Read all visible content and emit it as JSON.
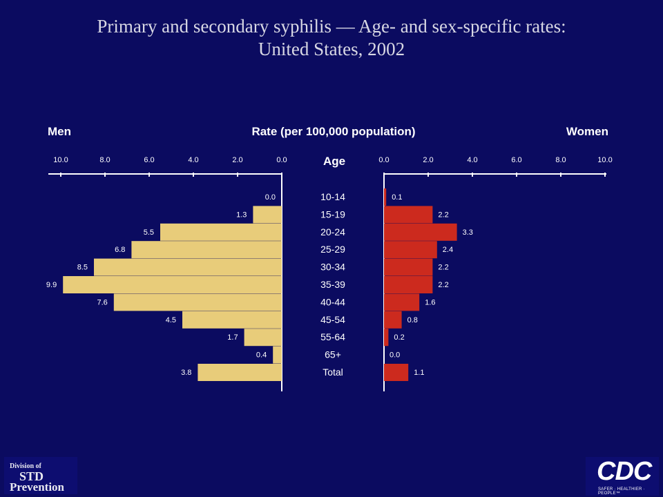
{
  "title": {
    "line1": "Primary and secondary syphilis — Age- and sex-specific rates:",
    "line2": "United States, 2002"
  },
  "chart_data": {
    "type": "bar",
    "title": "Primary and secondary syphilis — Age- and sex-specific rates: United States, 2002",
    "center_label": "Rate (per 100,000 population)",
    "category_axis_label": "Age",
    "categories": [
      "10-14",
      "15-19",
      "20-24",
      "25-29",
      "30-34",
      "35-39",
      "40-44",
      "45-54",
      "55-64",
      "65+",
      "Total"
    ],
    "series": [
      {
        "name": "Men",
        "color": "#e8cc7a",
        "values": [
          0.0,
          1.3,
          5.5,
          6.8,
          8.5,
          9.9,
          7.6,
          4.5,
          1.7,
          0.4,
          3.8
        ],
        "labels": [
          "0.0",
          "1.3",
          "5.5",
          "6.8",
          "8.5",
          "9.9",
          "7.6",
          "4.5",
          "1.7",
          "0.4",
          "3.8"
        ]
      },
      {
        "name": "Women",
        "color": "#cc2a1e",
        "values": [
          0.1,
          2.2,
          3.3,
          2.4,
          2.2,
          2.2,
          1.6,
          0.8,
          0.2,
          0.0,
          1.1
        ],
        "labels": [
          "0.1",
          "2.2",
          "3.3",
          "2.4",
          "2.2",
          "2.2",
          "1.6",
          "0.8",
          "0.2",
          "0.0",
          "1.1"
        ]
      }
    ],
    "men_ticks": [
      "10.0",
      "8.0",
      "6.0",
      "4.0",
      "2.0",
      "0.0"
    ],
    "women_ticks": [
      "0.0",
      "2.0",
      "4.0",
      "6.0",
      "8.0",
      "10.0"
    ],
    "xlim": [
      0,
      10
    ],
    "grid": false
  },
  "logos": {
    "std": {
      "line1": "Division of",
      "line2": "STD",
      "line3": "Prevention"
    },
    "cdc": {
      "text": "CDC",
      "tagline": "SAFER · HEALTHIER · PEOPLE™"
    }
  }
}
